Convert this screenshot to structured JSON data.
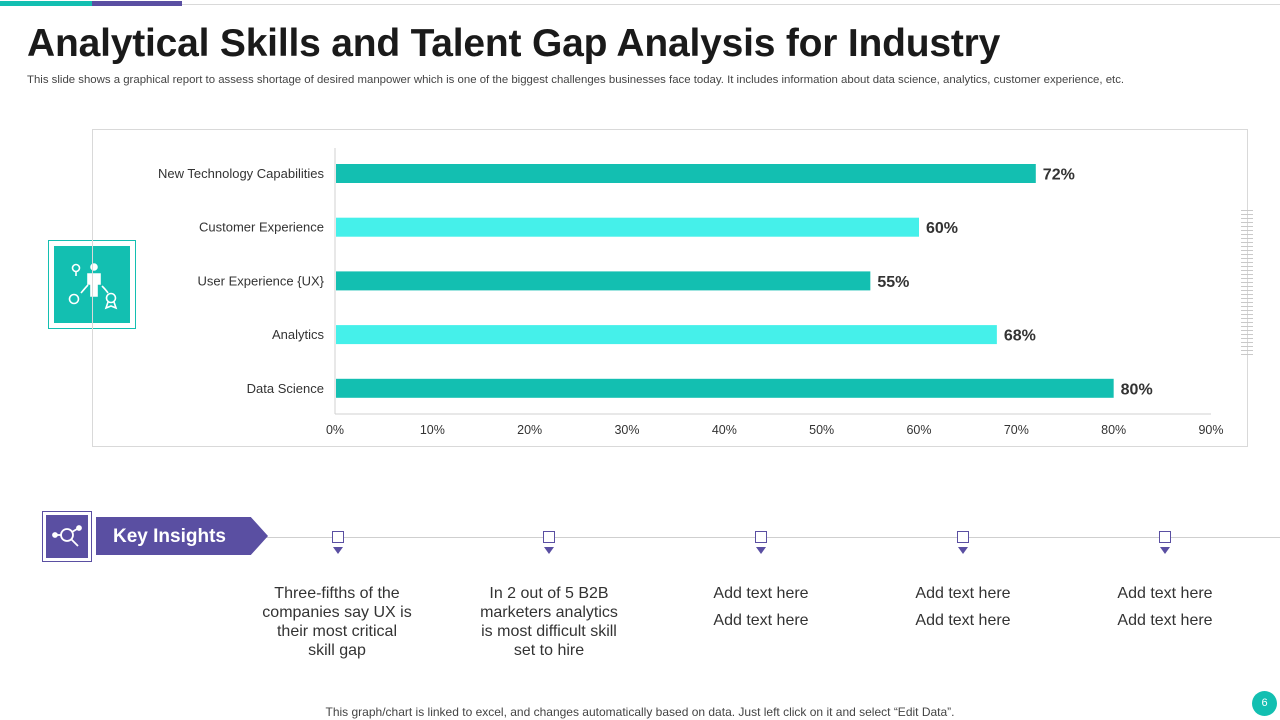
{
  "slide": {
    "title": "Analytical Skills and Talent Gap Analysis for Industry",
    "subtitle": "This slide shows a graphical report to assess shortage of desired manpower which is one of the biggest  challenges businesses face today. It includes information about data science, analytics, customer experience, etc.",
    "footer_note": "This graph/chart is linked to excel,  and changes automatically based on data. Just left click on it and select “Edit Data”.",
    "page_number": "6"
  },
  "colors": {
    "teal_dark": "#13bfb1",
    "teal_light": "#45f0ea",
    "purple": "#5a4fa2"
  },
  "chart_data": {
    "type": "bar",
    "orientation": "horizontal",
    "categories": [
      "New Technology Capabilities",
      "Customer Experience",
      "User Experience {UX}",
      "Analytics",
      "Data Science"
    ],
    "values": [
      72,
      60,
      55,
      68,
      80
    ],
    "value_labels": [
      "72%",
      "60%",
      "55%",
      "68%",
      "80%"
    ],
    "bar_colors": [
      "#13bfb1",
      "#45f0ea",
      "#13bfb1",
      "#45f0ea",
      "#13bfb1"
    ],
    "xlim": [
      0,
      90
    ],
    "xticks": [
      "0%",
      "10%",
      "20%",
      "30%",
      "40%",
      "50%",
      "60%",
      "70%",
      "80%",
      "90%"
    ],
    "title": "",
    "xlabel": "",
    "ylabel": "",
    "grid": false
  },
  "icons": {
    "chart_side_icon": "people-skills-icon",
    "insights_icon": "search-analytics-icon"
  },
  "insights": {
    "label": "Key Insights",
    "items": [
      {
        "lines": [
          "Three-fifths  of the companies say UX is their most critical skill gap"
        ]
      },
      {
        "lines": [
          "In  2 out of 5 B2B marketers analytics is most difficult skill set to hire"
        ]
      },
      {
        "lines": [
          "Add text here",
          "Add text here"
        ]
      },
      {
        "lines": [
          "Add text here",
          "Add text here"
        ]
      },
      {
        "lines": [
          "Add text here",
          "Add text here"
        ]
      }
    ]
  }
}
